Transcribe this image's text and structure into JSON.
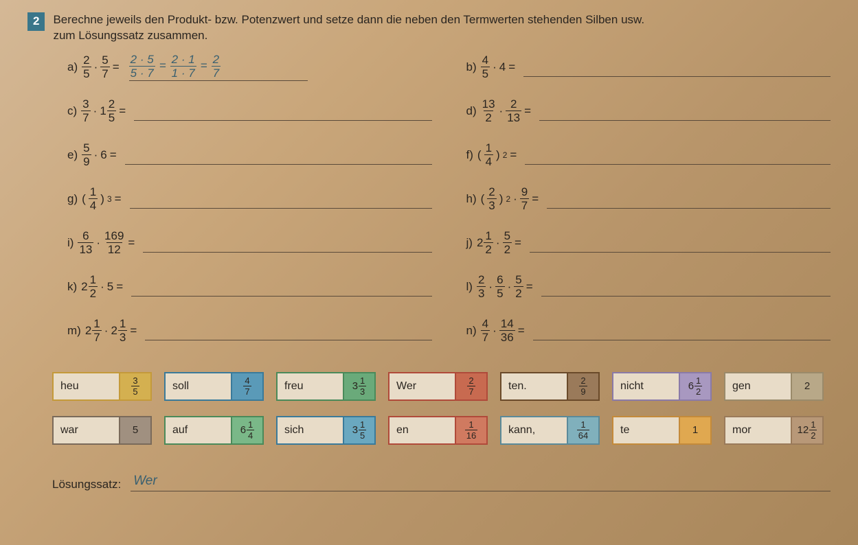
{
  "task": {
    "number": "2",
    "text_line1": "Berechne jeweils den Produkt- bzw. Potenzwert und setze dann die neben den Termwerten stehenden Silben usw.",
    "text_line2": "zum Lösungssatz zusammen."
  },
  "problems": {
    "a": {
      "label": "a)",
      "kind": "frac_times_frac",
      "n1": "2",
      "d1": "5",
      "n2": "5",
      "d2": "7",
      "worked": {
        "s1n": "2 · 5",
        "s1d": "5 · 7",
        "s2n": "2 · 1",
        "s2d": "1 · 7",
        "rn": "2",
        "rd": "7"
      }
    },
    "b": {
      "label": "b)",
      "kind": "frac_times_int",
      "n1": "4",
      "d1": "5",
      "int": "4"
    },
    "c": {
      "label": "c)",
      "kind": "frac_times_mix",
      "n1": "3",
      "d1": "7",
      "w": "1",
      "n2": "2",
      "d2": "5"
    },
    "d": {
      "label": "d)",
      "kind": "frac_times_frac",
      "n1": "13",
      "d1": "2",
      "n2": "2",
      "d2": "13"
    },
    "e": {
      "label": "e)",
      "kind": "frac_times_int",
      "n1": "5",
      "d1": "9",
      "int": "6"
    },
    "f": {
      "label": "f)",
      "kind": "frac_power",
      "n1": "1",
      "d1": "4",
      "exp": "2"
    },
    "g": {
      "label": "g)",
      "kind": "frac_power",
      "n1": "1",
      "d1": "4",
      "exp": "3"
    },
    "h": {
      "label": "h)",
      "kind": "frac_power_times_frac",
      "n1": "2",
      "d1": "3",
      "exp": "2",
      "n2": "9",
      "d2": "7"
    },
    "i": {
      "label": "i)",
      "kind": "frac_times_frac",
      "n1": "6",
      "d1": "13",
      "n2": "169",
      "d2": "12"
    },
    "j": {
      "label": "j)",
      "kind": "mix_times_frac",
      "w": "2",
      "n1": "1",
      "d1": "2",
      "n2": "5",
      "d2": "2"
    },
    "k": {
      "label": "k)",
      "kind": "mix_times_int",
      "w": "2",
      "n1": "1",
      "d1": "2",
      "int": "5"
    },
    "l": {
      "label": "l)",
      "kind": "frac3",
      "n1": "2",
      "d1": "3",
      "n2": "6",
      "d2": "5",
      "n3": "5",
      "d3": "2"
    },
    "m": {
      "label": "m)",
      "kind": "mix_times_mix",
      "w1": "2",
      "n1": "1",
      "d1": "7",
      "w2": "2",
      "n2": "1",
      "d2": "3"
    },
    "n": {
      "label": "n)",
      "kind": "frac_times_frac",
      "n1": "4",
      "d1": "7",
      "n2": "14",
      "d2": "36"
    }
  },
  "tiles": [
    {
      "syl": "heu",
      "val": {
        "type": "frac",
        "n": "3",
        "d": "5"
      },
      "border": "#c49a3a",
      "fill": "#d4b050"
    },
    {
      "syl": "soll",
      "val": {
        "type": "frac",
        "n": "4",
        "d": "7"
      },
      "border": "#3a7a9a",
      "fill": "#5a9ab8"
    },
    {
      "syl": "freu",
      "val": {
        "type": "mix",
        "w": "3",
        "n": "1",
        "d": "3"
      },
      "border": "#4a8a5a",
      "fill": "#6aaa7a"
    },
    {
      "syl": "Wer",
      "val": {
        "type": "frac",
        "n": "2",
        "d": "7"
      },
      "border": "#b04a3a",
      "fill": "#c86a50"
    },
    {
      "syl": "ten.",
      "val": {
        "type": "frac",
        "n": "2",
        "d": "9"
      },
      "border": "#6a4a2a",
      "fill": "#9a7a5a"
    },
    {
      "syl": "nicht",
      "val": {
        "type": "mix",
        "w": "6",
        "n": "1",
        "d": "2"
      },
      "border": "#8a7aa8",
      "fill": "#a898c0"
    },
    {
      "syl": "gen",
      "val": {
        "type": "int",
        "v": "2"
      },
      "border": "#9a8a6a",
      "fill": "#b8a888"
    },
    {
      "syl": "war",
      "val": {
        "type": "int",
        "v": "5"
      },
      "border": "#7a6a5a",
      "fill": "#a09080"
    },
    {
      "syl": "auf",
      "val": {
        "type": "mix",
        "w": "6",
        "n": "1",
        "d": "4"
      },
      "border": "#4a8a5a",
      "fill": "#7ab888"
    },
    {
      "syl": "sich",
      "val": {
        "type": "mix",
        "w": "3",
        "n": "1",
        "d": "5"
      },
      "border": "#3a7a9a",
      "fill": "#6aa8c0"
    },
    {
      "syl": "en",
      "val": {
        "type": "frac",
        "n": "1",
        "d": "16"
      },
      "border": "#b04a3a",
      "fill": "#d07a60"
    },
    {
      "syl": "kann,",
      "val": {
        "type": "frac",
        "n": "1",
        "d": "64"
      },
      "border": "#5a8a9a",
      "fill": "#80b0bc"
    },
    {
      "syl": "te",
      "val": {
        "type": "int",
        "v": "1"
      },
      "border": "#c48a3a",
      "fill": "#e0a850"
    },
    {
      "syl": "mor",
      "val": {
        "type": "mix",
        "w": "12",
        "n": "1",
        "d": "2"
      },
      "border": "#9a7a5a",
      "fill": "#b89878"
    }
  ],
  "solution": {
    "label": "Lösungssatz:",
    "written": "Wer"
  },
  "ops": {
    "dot": "·",
    "eq": "="
  }
}
